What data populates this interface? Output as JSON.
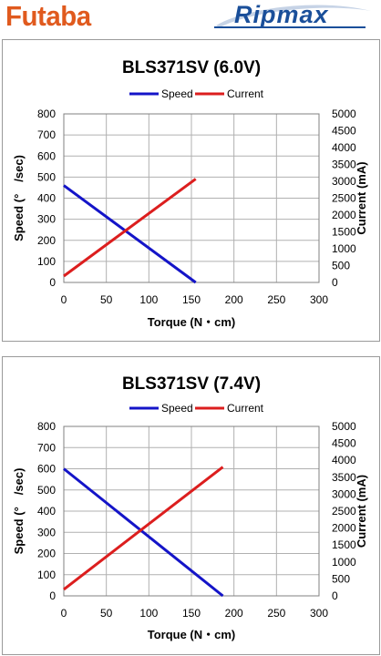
{
  "header": {
    "left_logo": "Futaba",
    "right_logo": "Ripmax"
  },
  "colors": {
    "speed": "#1414c8",
    "current": "#dc1e1e",
    "grid": "#b0b0b0",
    "futaba_brand": "#e05a1e",
    "ripmax_brand": "#1a4f9a"
  },
  "chart_data": [
    {
      "type": "line",
      "title": "BLS371SV (6.0V)",
      "xlabel": "Torque (N・cm)",
      "ylabel": "Speed (°　/sec)",
      "y2label": "Current (mA)",
      "xlim": [
        0,
        300
      ],
      "ylim": [
        0,
        800
      ],
      "y2lim": [
        0,
        5000
      ],
      "xticks": [
        "0",
        "50",
        "100",
        "150",
        "200",
        "250",
        "300"
      ],
      "yticks": [
        "0",
        "100",
        "200",
        "300",
        "400",
        "500",
        "600",
        "700",
        "800"
      ],
      "y2ticks": [
        "0",
        "500",
        "1000",
        "1500",
        "2000",
        "2500",
        "3000",
        "3500",
        "4000",
        "4500",
        "5000"
      ],
      "legend_position": "top",
      "grid": true,
      "series": [
        {
          "name": "Speed",
          "axis": "left",
          "x": [
            0,
            155
          ],
          "y": [
            460,
            0
          ]
        },
        {
          "name": "Current",
          "axis": "right",
          "x": [
            0,
            155
          ],
          "y": [
            190,
            3070
          ]
        }
      ]
    },
    {
      "type": "line",
      "title": "BLS371SV (7.4V)",
      "xlabel": "Torque (N・cm)",
      "ylabel": "Speed (°　/sec)",
      "y2label": "Current (mA)",
      "xlim": [
        0,
        300
      ],
      "ylim": [
        0,
        800
      ],
      "y2lim": [
        0,
        5000
      ],
      "xticks": [
        "0",
        "50",
        "100",
        "150",
        "200",
        "250",
        "300"
      ],
      "yticks": [
        "0",
        "100",
        "200",
        "300",
        "400",
        "500",
        "600",
        "700",
        "800"
      ],
      "y2ticks": [
        "0",
        "500",
        "1000",
        "1500",
        "2000",
        "2500",
        "3000",
        "3500",
        "4000",
        "4500",
        "5000"
      ],
      "legend_position": "top",
      "grid": true,
      "series": [
        {
          "name": "Speed",
          "axis": "left",
          "x": [
            0,
            187
          ],
          "y": [
            600,
            0
          ]
        },
        {
          "name": "Current",
          "axis": "right",
          "x": [
            0,
            187
          ],
          "y": [
            190,
            3800
          ]
        }
      ]
    }
  ]
}
